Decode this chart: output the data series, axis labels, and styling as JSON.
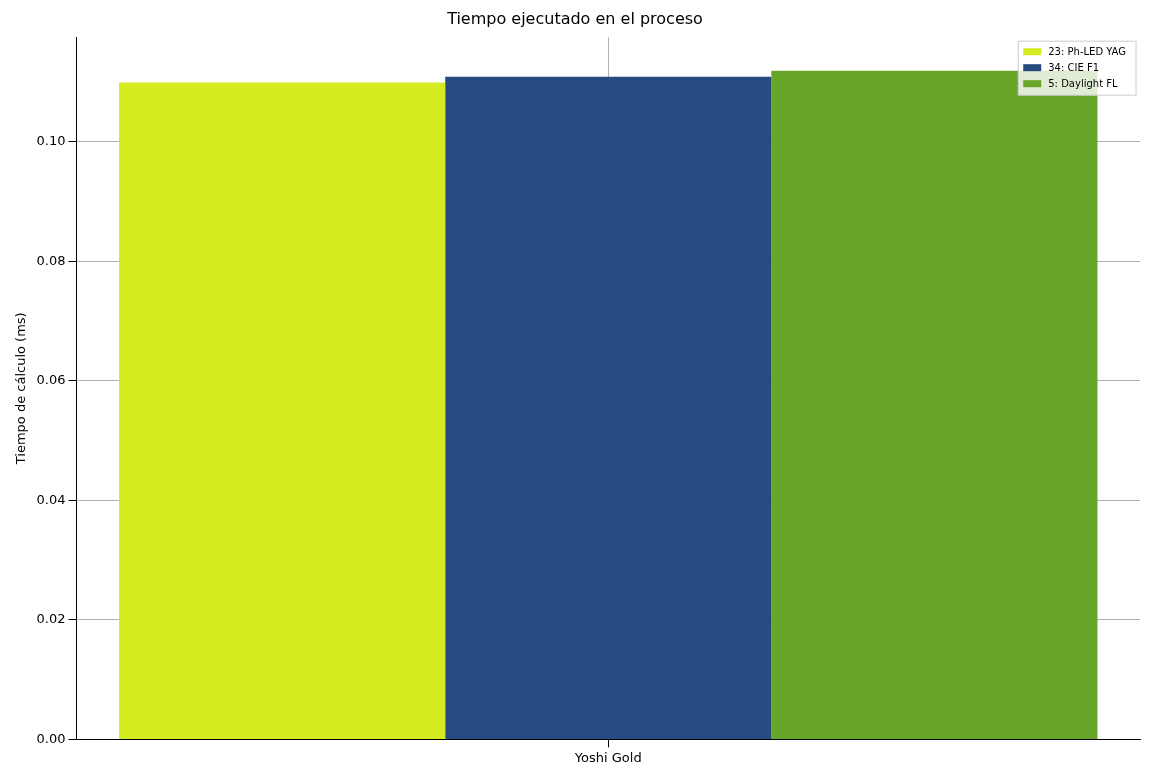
{
  "chart_data": {
    "type": "bar",
    "title": "Tiempo ejecutado en el proceso",
    "ylabel": "Tiempo de cálculo (ms)",
    "categories": [
      "Yoshi Gold"
    ],
    "series": [
      {
        "name": "23: Ph-LED YAG",
        "color": "#d4eb1f",
        "values": [
          0.1099
        ]
      },
      {
        "name": "34: CIE F1",
        "color": "#264b80",
        "values": [
          0.1109
        ]
      },
      {
        "name": "5: Daylight FL",
        "color": "#67a628",
        "values": [
          0.1119
        ]
      }
    ],
    "ylim": [
      0,
      0.1175
    ],
    "yticks": [
      {
        "value": 0,
        "label": "0.00"
      },
      {
        "value": 0.02,
        "label": "0.02"
      },
      {
        "value": 0.04,
        "label": "0.04"
      },
      {
        "value": 0.06,
        "label": "0.06"
      },
      {
        "value": 0.08,
        "label": "0.08"
      },
      {
        "value": 0.1,
        "label": "0.10"
      }
    ],
    "grid": true,
    "legend": "top right"
  }
}
